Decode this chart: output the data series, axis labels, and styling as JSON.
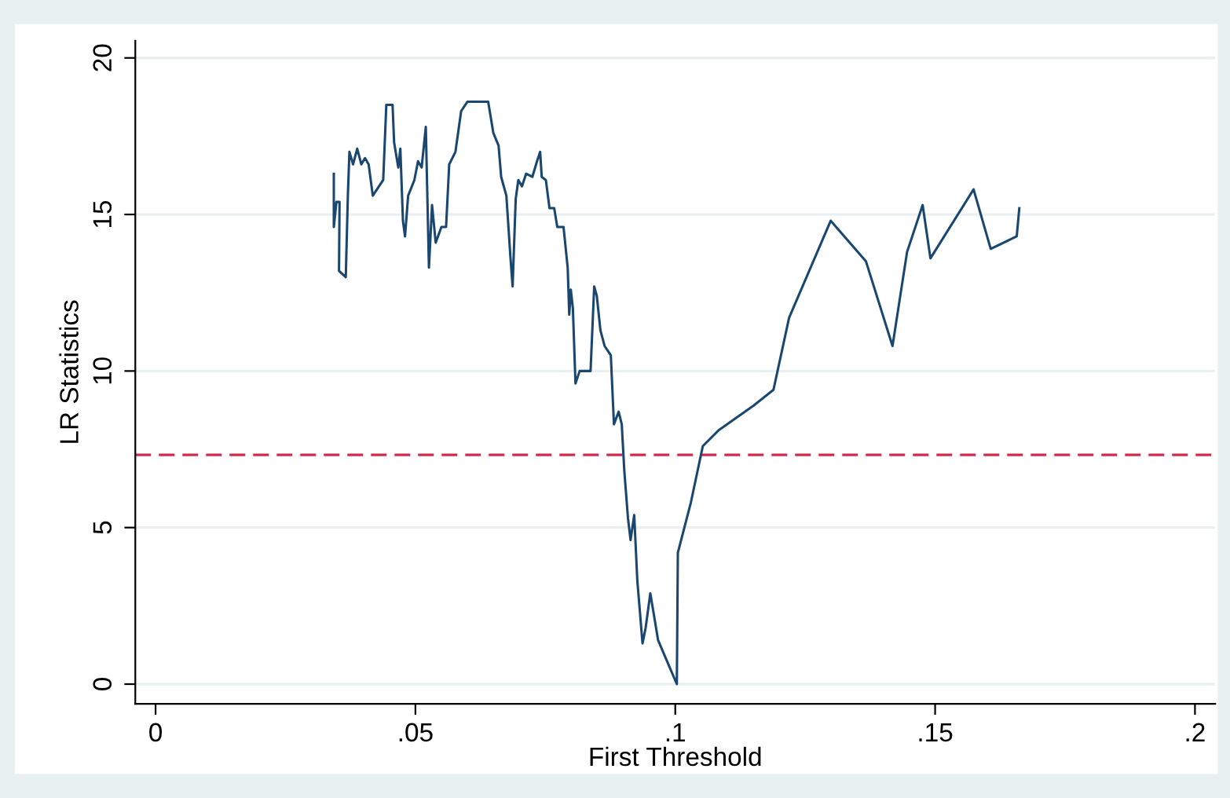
{
  "chart_data": {
    "type": "line",
    "xlabel": "First Threshold",
    "ylabel": "LR Statistics",
    "xlim": [
      -0.0039,
      0.2039
    ],
    "ylim": [
      -0.63,
      20.55
    ],
    "xticks": [
      0,
      {
        "value": 0.05,
        "label": ".05"
      },
      {
        "value": 0.1,
        "label": ".1"
      },
      {
        "value": 0.15,
        "label": ".15"
      },
      {
        "value": 0.2,
        "label": ".2"
      }
    ],
    "yticks": [
      0,
      5,
      10,
      15,
      20
    ],
    "grid": "y",
    "line_style": "solid",
    "ref_lines": [
      {
        "axis": "y",
        "value": 7.32,
        "color": "#d42a4e",
        "line_style": "dashed"
      }
    ],
    "series": [
      {
        "color": "#1a476f",
        "x": [
          0.0343,
          0.0343,
          0.0348,
          0.0354,
          0.0353,
          0.0366,
          0.037,
          0.0373,
          0.038,
          0.0388,
          0.0396,
          0.0403,
          0.041,
          0.0418,
          0.0426,
          0.0438,
          0.0444,
          0.0456,
          0.0459,
          0.0467,
          0.0471,
          0.0476,
          0.048,
          0.0486,
          0.0498,
          0.0505,
          0.0512,
          0.052,
          0.0526,
          0.0532,
          0.0539,
          0.055,
          0.0559,
          0.0565,
          0.0577,
          0.0588,
          0.06,
          0.0615,
          0.064,
          0.065,
          0.066,
          0.0665,
          0.0675,
          0.0683,
          0.0687,
          0.0693,
          0.0698,
          0.0705,
          0.0713,
          0.0725,
          0.0734,
          0.074,
          0.0743,
          0.0751,
          0.0758,
          0.0767,
          0.0773,
          0.0785,
          0.0793,
          0.0796,
          0.0799,
          0.0803,
          0.0808,
          0.0816,
          0.0837,
          0.0844,
          0.0849,
          0.0856,
          0.0864,
          0.0876,
          0.0882,
          0.0891,
          0.0897,
          0.0902,
          0.0909,
          0.0914,
          0.0921,
          0.0927,
          0.0937,
          0.0943,
          0.0952,
          0.0958,
          0.0967,
          0.0985,
          0.1003,
          0.1005,
          0.103,
          0.1053,
          0.1083,
          0.1151,
          0.1189,
          0.1219,
          0.1299,
          0.1367,
          0.1418,
          0.1446,
          0.1476,
          0.1491,
          0.1574,
          0.1607,
          0.1657,
          0.1662
        ],
        "values": [
          16.3,
          14.6,
          15.4,
          15.4,
          13.2,
          13.0,
          15.6,
          17.0,
          16.6,
          17.1,
          16.6,
          16.8,
          16.6,
          15.6,
          15.8,
          16.1,
          18.5,
          18.5,
          17.3,
          16.5,
          17.1,
          14.8,
          14.3,
          15.6,
          16.1,
          16.7,
          16.5,
          17.8,
          13.3,
          15.3,
          14.1,
          14.6,
          14.6,
          16.6,
          17.0,
          18.3,
          18.6,
          18.6,
          18.6,
          17.6,
          17.2,
          16.2,
          15.6,
          13.6,
          12.7,
          15.5,
          16.1,
          15.9,
          16.3,
          16.2,
          16.7,
          17.0,
          16.2,
          16.1,
          15.2,
          15.2,
          14.6,
          14.6,
          13.3,
          11.8,
          12.6,
          12.0,
          9.6,
          10.0,
          10.0,
          12.7,
          12.4,
          11.3,
          10.8,
          10.5,
          8.3,
          8.7,
          8.3,
          6.8,
          5.3,
          4.6,
          5.4,
          3.3,
          1.3,
          1.8,
          2.9,
          2.3,
          1.4,
          0.7,
          0.0,
          4.2,
          5.8,
          7.6,
          8.1,
          8.9,
          9.4,
          11.7,
          14.8,
          13.5,
          10.8,
          13.8,
          15.3,
          13.6,
          15.8,
          13.9,
          14.3,
          15.2
        ]
      }
    ]
  }
}
